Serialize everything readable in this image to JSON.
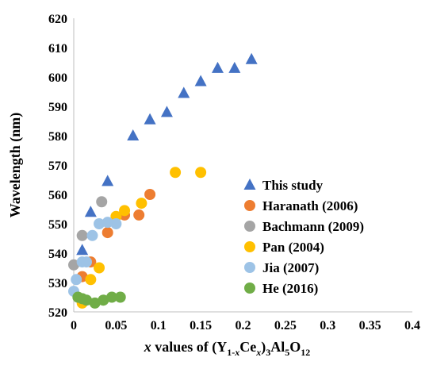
{
  "chart_data": {
    "type": "scatter",
    "xlabel": {
      "italic": "x",
      "pre": " values of (Y",
      "sub1": "1-",
      "sub2": "x",
      "mid": "Ce",
      "sub3": "x",
      "post": ")",
      "sub4": "3",
      "post2": "Al",
      "sub5": "5",
      "post3": "O",
      "sub6": "12"
    },
    "ylabel": "Wavelength (nm)",
    "xlim": [
      0,
      0.4
    ],
    "ylim": [
      520,
      620
    ],
    "x_ticks": [
      "0",
      "0.05",
      "0.1",
      "0.15",
      "0.2",
      "0.25",
      "0.3",
      "0.35",
      "0.4"
    ],
    "y_ticks": [
      "520",
      "530",
      "540",
      "550",
      "560",
      "570",
      "580",
      "590",
      "600",
      "610",
      "620"
    ],
    "grid": false,
    "legend_position": "inside-lower-right",
    "series": [
      {
        "name": "This study",
        "marker": "triangle",
        "color": "#4472C4",
        "points": [
          [
            0.01,
            541
          ],
          [
            0.02,
            554
          ],
          [
            0.04,
            564.5
          ],
          [
            0.07,
            580
          ],
          [
            0.09,
            585.5
          ],
          [
            0.11,
            588
          ],
          [
            0.13,
            594.5
          ],
          [
            0.15,
            598.5
          ],
          [
            0.17,
            603
          ],
          [
            0.19,
            603
          ],
          [
            0.21,
            606
          ]
        ]
      },
      {
        "name": "Haranath (2006)",
        "marker": "circle",
        "color": "#ED7D31",
        "points": [
          [
            0.01,
            532
          ],
          [
            0.02,
            537
          ],
          [
            0.04,
            547
          ],
          [
            0.06,
            553
          ],
          [
            0.077,
            553
          ],
          [
            0.09,
            560
          ]
        ]
      },
      {
        "name": "Bachmann (2009)",
        "marker": "circle",
        "color": "#A5A5A5",
        "points": [
          [
            0.0,
            536
          ],
          [
            0.01,
            546
          ],
          [
            0.033,
            557.5
          ]
        ]
      },
      {
        "name": "Pan (2004)",
        "marker": "circle",
        "color": "#FFC000",
        "points": [
          [
            0.01,
            523
          ],
          [
            0.02,
            531
          ],
          [
            0.03,
            535
          ],
          [
            0.05,
            552.5
          ],
          [
            0.06,
            554.5
          ],
          [
            0.08,
            557
          ],
          [
            0.12,
            567.5
          ],
          [
            0.15,
            567.5
          ]
        ]
      },
      {
        "name": "Jia (2007)",
        "marker": "circle",
        "color": "#9DC3E6",
        "points": [
          [
            0.0,
            527
          ],
          [
            0.003,
            531
          ],
          [
            0.01,
            537
          ],
          [
            0.015,
            537
          ],
          [
            0.022,
            546
          ],
          [
            0.03,
            550
          ],
          [
            0.04,
            550.5
          ],
          [
            0.05,
            550
          ]
        ]
      },
      {
        "name": "He (2016)",
        "marker": "circle",
        "color": "#70AD47",
        "points": [
          [
            0.005,
            525
          ],
          [
            0.01,
            524.5
          ],
          [
            0.015,
            524
          ],
          [
            0.025,
            523
          ],
          [
            0.035,
            524
          ],
          [
            0.045,
            525
          ],
          [
            0.055,
            525
          ]
        ]
      }
    ]
  }
}
